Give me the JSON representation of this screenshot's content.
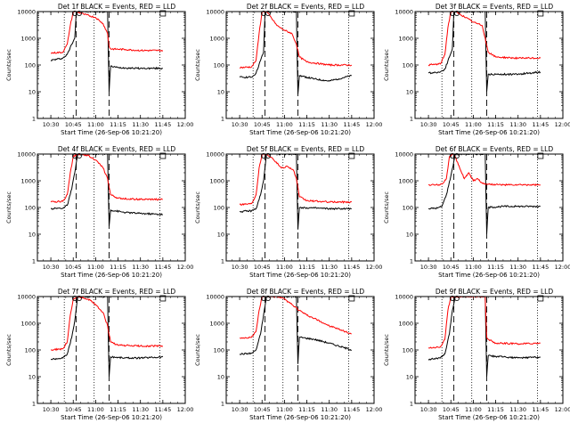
{
  "figure": {
    "series_colors": {
      "events": "#000000",
      "lld": "#ff0000"
    }
  },
  "chart_data": [
    {
      "type": "line",
      "title": "Det 1f BLACK = Events, RED = LLD",
      "xlabel": "Start Time (26-Sep-06 10:21:20)",
      "ylabel": "Counts/sec",
      "yscale": "log",
      "ylim": [
        1,
        10000
      ],
      "y_ticks": [
        "1",
        "10",
        "100",
        "1000",
        "10000"
      ],
      "xlim": [
        "10:21",
        "12:00"
      ],
      "x_ticks": [
        "10:30",
        "10:45",
        "11:00",
        "11:15",
        "11:30",
        "11:45",
        "12:00"
      ],
      "dotted_times": [
        "10:39",
        "10:59",
        "11:43"
      ],
      "dashed_times": [
        "10:47",
        "11:09"
      ],
      "square_marker_time": "11:45",
      "circle_marker_times": [
        "10:46",
        "10:49"
      ],
      "series": [
        {
          "color": "#000000",
          "x": [
            "10:30",
            "10:38",
            "10:41",
            "10:44",
            "10:46",
            "10:47",
            "10:50",
            "11:00",
            "11:08",
            "11:09",
            "11:10",
            "11:15",
            "11:30",
            "11:45"
          ],
          "y": [
            150,
            180,
            250,
            600,
            1000,
            10000,
            10000,
            10000,
            10000,
            10,
            90,
            80,
            75,
            75
          ]
        },
        {
          "color": "#ff0000",
          "x": [
            "10:30",
            "10:38",
            "10:41",
            "10:43",
            "10:45",
            "10:47",
            "10:52",
            "11:00",
            "11:05",
            "11:08",
            "11:09",
            "11:10",
            "11:20",
            "11:30",
            "11:45"
          ],
          "y": [
            280,
            300,
            600,
            3000,
            10000,
            10000,
            8000,
            6000,
            3500,
            1500,
            500,
            400,
            380,
            350,
            350
          ]
        }
      ]
    },
    {
      "type": "line",
      "title": "Det 2f BLACK = Events, RED = LLD",
      "xlabel": "Start Time (26-Sep-06 10:21:20)",
      "ylabel": "Counts/sec",
      "yscale": "log",
      "ylim": [
        1,
        10000
      ],
      "y_ticks": [
        "1",
        "10",
        "100",
        "1000",
        "10000"
      ],
      "xlim": [
        "10:21",
        "12:00"
      ],
      "x_ticks": [
        "10:30",
        "10:45",
        "11:00",
        "11:15",
        "11:30",
        "11:45",
        "12:00"
      ],
      "dotted_times": [
        "10:39",
        "10:59",
        "11:43"
      ],
      "dashed_times": [
        "10:47",
        "11:09"
      ],
      "square_marker_time": "11:45",
      "circle_marker_times": [
        "10:46",
        "10:49"
      ],
      "series": [
        {
          "color": "#000000",
          "x": [
            "10:30",
            "10:38",
            "10:41",
            "10:44",
            "10:46",
            "10:47",
            "10:55",
            "11:05",
            "11:08",
            "11:09",
            "11:10",
            "11:20",
            "11:30",
            "11:45"
          ],
          "y": [
            35,
            35,
            50,
            150,
            300,
            10000,
            10000,
            10000,
            10000,
            8,
            40,
            30,
            25,
            40
          ]
        },
        {
          "color": "#ff0000",
          "x": [
            "10:30",
            "10:38",
            "10:41",
            "10:43",
            "10:45",
            "10:48",
            "10:55",
            "11:00",
            "11:05",
            "11:08",
            "11:10",
            "11:15",
            "11:30",
            "11:45"
          ],
          "y": [
            80,
            85,
            150,
            1500,
            10000,
            10000,
            3000,
            2000,
            1500,
            600,
            200,
            130,
            100,
            100
          ]
        }
      ]
    },
    {
      "type": "line",
      "title": "Det 3f BLACK = Events, RED = LLD",
      "xlabel": "Start Time (26-Sep-06 10:21:20)",
      "ylabel": "Counts/sec",
      "yscale": "log",
      "ylim": [
        1,
        10000
      ],
      "y_ticks": [
        "1",
        "10",
        "100",
        "1000",
        "10000"
      ],
      "xlim": [
        "10:21",
        "12:00"
      ],
      "x_ticks": [
        "10:30",
        "10:45",
        "11:00",
        "11:15",
        "11:30",
        "11:45",
        "12:00"
      ],
      "dotted_times": [
        "10:39",
        "10:59",
        "11:43"
      ],
      "dashed_times": [
        "10:47",
        "11:09"
      ],
      "square_marker_time": "11:45",
      "circle_marker_times": [
        "10:46",
        "10:49"
      ],
      "series": [
        {
          "color": "#000000",
          "x": [
            "10:30",
            "10:38",
            "10:41",
            "10:44",
            "10:46",
            "10:47",
            "10:55",
            "11:05",
            "11:08",
            "11:09",
            "11:10",
            "11:20",
            "11:30",
            "11:45"
          ],
          "y": [
            50,
            55,
            70,
            200,
            400,
            10000,
            10000,
            10000,
            10000,
            10,
            45,
            45,
            45,
            55
          ]
        },
        {
          "color": "#ff0000",
          "x": [
            "10:30",
            "10:38",
            "10:41",
            "10:43",
            "10:45",
            "10:48",
            "10:55",
            "11:00",
            "11:03",
            "11:06",
            "11:08",
            "11:10",
            "11:15",
            "11:30",
            "11:45"
          ],
          "y": [
            100,
            110,
            250,
            2500,
            10000,
            10000,
            6000,
            4000,
            3500,
            3000,
            1000,
            300,
            200,
            180,
            180
          ]
        }
      ]
    },
    {
      "type": "line",
      "title": "Det 4f BLACK = Events, RED = LLD",
      "xlabel": "Start Time (26-Sep-06 10:21:20)",
      "ylabel": "Counts/sec",
      "yscale": "log",
      "ylim": [
        1,
        10000
      ],
      "y_ticks": [
        "1",
        "10",
        "100",
        "1000",
        "10000"
      ],
      "xlim": [
        "10:21",
        "12:00"
      ],
      "x_ticks": [
        "10:30",
        "10:45",
        "11:00",
        "11:15",
        "11:30",
        "11:45",
        "12:00"
      ],
      "dotted_times": [
        "10:39",
        "10:59",
        "11:43"
      ],
      "dashed_times": [
        "10:47",
        "11:09"
      ],
      "square_marker_time": "11:45",
      "circle_marker_times": [
        "10:46",
        "10:49"
      ],
      "series": [
        {
          "color": "#000000",
          "x": [
            "10:30",
            "10:38",
            "10:41",
            "10:44",
            "10:46",
            "10:48",
            "10:55",
            "11:05",
            "11:08",
            "11:09",
            "11:10",
            "11:20",
            "11:30",
            "11:45"
          ],
          "y": [
            90,
            95,
            120,
            500,
            2000,
            10000,
            10000,
            10000,
            10000,
            20,
            80,
            65,
            60,
            55
          ]
        },
        {
          "color": "#ff0000",
          "x": [
            "10:30",
            "10:38",
            "10:41",
            "10:43",
            "10:45",
            "10:48",
            "10:55",
            "11:00",
            "11:05",
            "11:08",
            "11:10",
            "11:15",
            "11:30",
            "11:45"
          ],
          "y": [
            160,
            170,
            300,
            2000,
            8000,
            10000,
            9000,
            6000,
            3000,
            1200,
            300,
            220,
            200,
            200
          ]
        }
      ]
    },
    {
      "type": "line",
      "title": "Det 5f BLACK = Events, RED = LLD",
      "xlabel": "Start Time (26-Sep-06 10:21:20)",
      "ylabel": "Counts/sec",
      "yscale": "log",
      "ylim": [
        1,
        10000
      ],
      "y_ticks": [
        "1",
        "10",
        "100",
        "1000",
        "10000"
      ],
      "xlim": [
        "10:21",
        "12:00"
      ],
      "x_ticks": [
        "10:30",
        "10:45",
        "11:00",
        "11:15",
        "11:30",
        "11:45",
        "12:00"
      ],
      "dotted_times": [
        "10:39",
        "10:59",
        "11:43"
      ],
      "dashed_times": [
        "10:47",
        "11:09"
      ],
      "square_marker_time": "11:45",
      "circle_marker_times": [
        "10:46",
        "10:49"
      ],
      "series": [
        {
          "color": "#000000",
          "x": [
            "10:30",
            "10:38",
            "10:41",
            "10:44",
            "10:46",
            "10:48",
            "10:55",
            "11:05",
            "11:08",
            "11:09",
            "11:10",
            "11:20",
            "11:30",
            "11:45"
          ],
          "y": [
            70,
            75,
            90,
            300,
            1000,
            10000,
            10000,
            10000,
            10000,
            15,
            100,
            95,
            90,
            90
          ]
        },
        {
          "color": "#ff0000",
          "x": [
            "10:30",
            "10:38",
            "10:41",
            "10:43",
            "10:45",
            "10:48",
            "10:52",
            "10:58",
            "11:02",
            "11:06",
            "11:08",
            "11:10",
            "11:15",
            "11:30",
            "11:45"
          ],
          "y": [
            130,
            140,
            300,
            3000,
            10000,
            10000,
            7000,
            3000,
            3500,
            2500,
            1200,
            250,
            180,
            160,
            160
          ]
        }
      ]
    },
    {
      "type": "line",
      "title": "Det 6f BLACK = Events, RED = LLD",
      "xlabel": "Start Time (26-Sep-06 10:21:20)",
      "ylabel": "Counts/sec",
      "yscale": "log",
      "ylim": [
        1,
        10000
      ],
      "y_ticks": [
        "1",
        "10",
        "100",
        "1000",
        "10000"
      ],
      "xlim": [
        "10:21",
        "12:00"
      ],
      "x_ticks": [
        "10:30",
        "10:45",
        "11:00",
        "11:15",
        "11:30",
        "11:45",
        "12:00"
      ],
      "dotted_times": [
        "10:39",
        "10:59",
        "11:43"
      ],
      "dashed_times": [
        "10:47",
        "11:09"
      ],
      "square_marker_time": "11:45",
      "circle_marker_times": [
        "10:46",
        "10:49"
      ],
      "series": [
        {
          "color": "#000000",
          "x": [
            "10:30",
            "10:36",
            "10:39",
            "10:42",
            "10:45",
            "10:48",
            "10:55",
            "11:05",
            "11:08",
            "11:09",
            "11:10",
            "11:20",
            "11:30",
            "11:45"
          ],
          "y": [
            90,
            95,
            110,
            300,
            1500,
            10000,
            10000,
            10000,
            10000,
            10,
            100,
            110,
            110,
            110
          ]
        },
        {
          "color": "#ff0000",
          "x": [
            "10:30",
            "10:36",
            "10:39",
            "10:42",
            "10:44",
            "10:47",
            "10:50",
            "10:54",
            "10:57",
            "11:00",
            "11:03",
            "11:06",
            "11:09",
            "11:20",
            "11:30",
            "11:45"
          ],
          "y": [
            700,
            700,
            750,
            1200,
            8000,
            10000,
            4000,
            1200,
            2000,
            1000,
            1200,
            800,
            750,
            700,
            700,
            700
          ]
        }
      ]
    },
    {
      "type": "line",
      "title": "Det 7f BLACK = Events, RED = LLD",
      "xlabel": "Start Time (26-Sep-06 10:21:20)",
      "ylabel": "Counts/sec",
      "yscale": "log",
      "ylim": [
        1,
        10000
      ],
      "y_ticks": [
        "1",
        "10",
        "100",
        "1000",
        "10000"
      ],
      "xlim": [
        "10:21",
        "12:00"
      ],
      "x_ticks": [
        "10:30",
        "10:45",
        "11:00",
        "11:15",
        "11:30",
        "11:45",
        "12:00"
      ],
      "dotted_times": [
        "10:39",
        "10:59",
        "11:43"
      ],
      "dashed_times": [
        "10:47",
        "11:09"
      ],
      "square_marker_time": "11:45",
      "circle_marker_times": [
        "10:46",
        "10:49"
      ],
      "series": [
        {
          "color": "#000000",
          "x": [
            "10:30",
            "10:38",
            "10:41",
            "10:44",
            "10:46",
            "10:48",
            "10:55",
            "11:05",
            "11:08",
            "11:09",
            "11:10",
            "11:20",
            "11:30",
            "11:45"
          ],
          "y": [
            45,
            50,
            70,
            300,
            1200,
            10000,
            10000,
            10000,
            10000,
            10,
            55,
            50,
            50,
            55
          ]
        },
        {
          "color": "#ff0000",
          "x": [
            "10:30",
            "10:38",
            "10:41",
            "10:43",
            "10:45",
            "10:48",
            "10:55",
            "11:00",
            "11:05",
            "11:08",
            "11:10",
            "11:15",
            "11:30",
            "11:45"
          ],
          "y": [
            100,
            110,
            200,
            2000,
            8000,
            10000,
            8000,
            5000,
            2500,
            800,
            200,
            150,
            140,
            140
          ]
        }
      ]
    },
    {
      "type": "line",
      "title": "Det 8f BLACK = Events, RED = LLD",
      "xlabel": "Start Time (26-Sep-06 10:21:20)",
      "ylabel": "Counts/sec",
      "yscale": "log",
      "ylim": [
        1,
        10000
      ],
      "y_ticks": [
        "1",
        "10",
        "100",
        "1000",
        "10000"
      ],
      "xlim": [
        "10:21",
        "12:00"
      ],
      "x_ticks": [
        "10:30",
        "10:45",
        "11:00",
        "11:15",
        "11:30",
        "11:45",
        "12:00"
      ],
      "dotted_times": [
        "10:39",
        "10:59",
        "11:43"
      ],
      "dashed_times": [
        "10:47",
        "11:09"
      ],
      "square_marker_time": "11:45",
      "circle_marker_times": [
        "10:46",
        "10:49"
      ],
      "series": [
        {
          "color": "#000000",
          "x": [
            "10:30",
            "10:38",
            "10:41",
            "10:44",
            "10:46",
            "10:48",
            "10:55",
            "11:05",
            "11:08",
            "11:09",
            "11:10",
            "11:20",
            "11:30",
            "11:45"
          ],
          "y": [
            70,
            75,
            100,
            400,
            2000,
            10000,
            10000,
            10000,
            10000,
            30,
            300,
            250,
            180,
            100
          ]
        },
        {
          "color": "#ff0000",
          "x": [
            "10:30",
            "10:38",
            "10:41",
            "10:43",
            "10:45",
            "10:48",
            "10:55",
            "11:00",
            "11:05",
            "11:10",
            "11:15",
            "11:20",
            "11:30",
            "11:45"
          ],
          "y": [
            280,
            300,
            500,
            3000,
            10000,
            10000,
            10000,
            8000,
            5000,
            3000,
            2000,
            1500,
            800,
            400
          ]
        }
      ]
    },
    {
      "type": "line",
      "title": "Det 9f BLACK = Events, RED = LLD",
      "xlabel": "Start Time (26-Sep-06 10:21:20)",
      "ylabel": "Counts/sec",
      "yscale": "log",
      "ylim": [
        1,
        10000
      ],
      "y_ticks": [
        "1",
        "10",
        "100",
        "1000",
        "10000"
      ],
      "xlim": [
        "10:21",
        "12:00"
      ],
      "x_ticks": [
        "10:30",
        "10:45",
        "11:00",
        "11:15",
        "11:30",
        "11:45",
        "12:00"
      ],
      "dotted_times": [
        "10:39",
        "10:59",
        "11:43"
      ],
      "dashed_times": [
        "10:47",
        "11:09"
      ],
      "square_marker_time": "11:45",
      "circle_marker_times": [
        "10:46",
        "10:49"
      ],
      "series": [
        {
          "color": "#000000",
          "x": [
            "10:30",
            "10:38",
            "10:41",
            "10:44",
            "10:46",
            "10:48",
            "10:55",
            "11:05",
            "11:08",
            "11:09",
            "11:10",
            "11:20",
            "11:30",
            "11:45"
          ],
          "y": [
            45,
            50,
            70,
            400,
            3000,
            10000,
            10000,
            10000,
            10000,
            10,
            60,
            55,
            50,
            55
          ]
        },
        {
          "color": "#ff0000",
          "x": [
            "10:30",
            "10:38",
            "10:41",
            "10:43",
            "10:45",
            "10:48",
            "10:55",
            "11:05",
            "11:08",
            "11:09",
            "11:10",
            "11:15",
            "11:30",
            "11:45"
          ],
          "y": [
            120,
            130,
            250,
            3000,
            10000,
            10000,
            10000,
            10000,
            10000,
            300,
            250,
            180,
            170,
            180
          ]
        }
      ]
    }
  ]
}
